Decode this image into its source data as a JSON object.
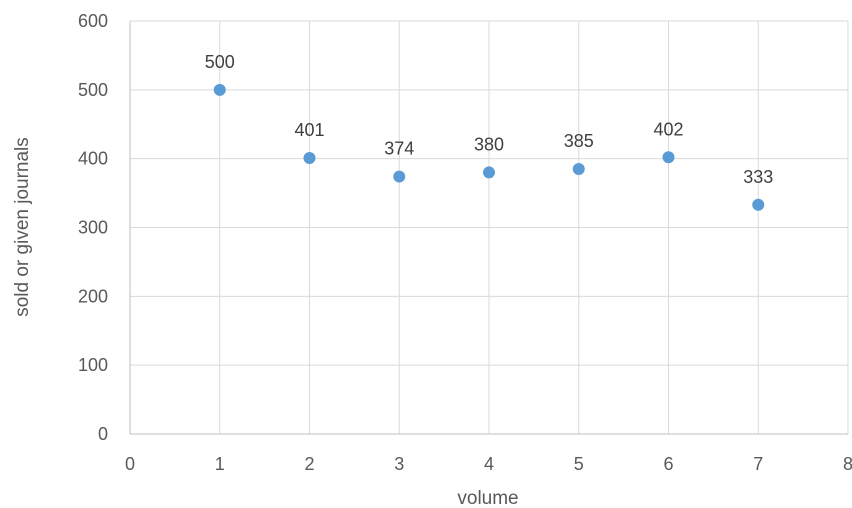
{
  "chart_data": {
    "type": "scatter",
    "title": "",
    "xlabel": "volume",
    "ylabel": "sold or  given journals",
    "xlim": [
      0,
      8
    ],
    "ylim": [
      0,
      600
    ],
    "x_ticks": [
      0,
      1,
      2,
      3,
      4,
      5,
      6,
      7,
      8
    ],
    "y_ticks": [
      0,
      100,
      200,
      300,
      400,
      500,
      600
    ],
    "grid": true,
    "legend": "none",
    "series": [
      {
        "color": "#5b9bd5",
        "x": [
          1,
          2,
          3,
          4,
          5,
          6,
          7
        ],
        "y": [
          500,
          401,
          374,
          380,
          385,
          402,
          333
        ],
        "labels": [
          "500",
          "401",
          "374",
          "380",
          "385",
          "402",
          "333"
        ]
      }
    ]
  }
}
